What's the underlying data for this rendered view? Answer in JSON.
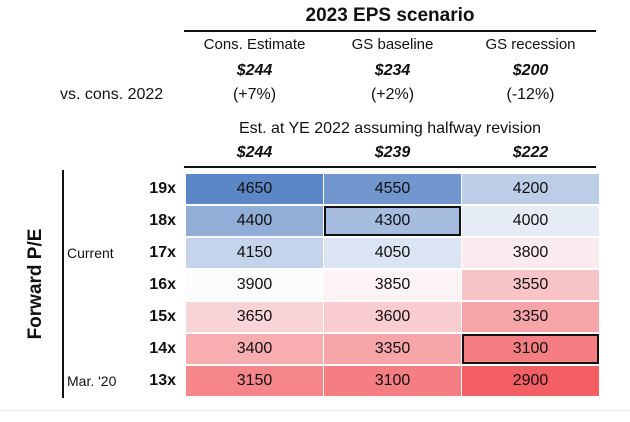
{
  "title": "2023 EPS scenario",
  "row_label": "vs. cons. 2022",
  "scenarios": [
    {
      "name": "Cons. Estimate",
      "eps": "$244",
      "change": "(+7%)"
    },
    {
      "name": "GS baseline",
      "eps": "$234",
      "change": "(+2%)"
    },
    {
      "name": "GS recession",
      "eps": "$200",
      "change": "(-12%)"
    }
  ],
  "subtitle": "Est. at YE 2022 assuming halfway revision",
  "ye_values": [
    "$244",
    "$239",
    "$222"
  ],
  "y_axis_title": "Forward P/E",
  "notes": [
    {
      "row": 2,
      "text": "Current"
    },
    {
      "row": 6,
      "text": "Mar. '20"
    }
  ],
  "colors": {
    "blue_strong": "#5b87c6",
    "neutral": "#fbfbfd",
    "red_strong": "#f45f63"
  },
  "chart_data": {
    "type": "heatmap",
    "title": "2023 EPS scenario",
    "columns": [
      "$244",
      "$239",
      "$222"
    ],
    "rows": [
      "19x",
      "18x",
      "17x",
      "16x",
      "15x",
      "14x",
      "13x"
    ],
    "values": [
      [
        4650,
        4550,
        4200
      ],
      [
        4400,
        4300,
        4000
      ],
      [
        4150,
        4050,
        3800
      ],
      [
        3900,
        3850,
        3550
      ],
      [
        3650,
        3600,
        3350
      ],
      [
        3400,
        3350,
        3100
      ],
      [
        3150,
        3100,
        2900
      ]
    ],
    "highlighted": [
      {
        "row": 1,
        "col": 1
      },
      {
        "row": 5,
        "col": 2
      }
    ],
    "color_scale": {
      "min": 2900,
      "mid": 3900,
      "max": 4650
    }
  }
}
